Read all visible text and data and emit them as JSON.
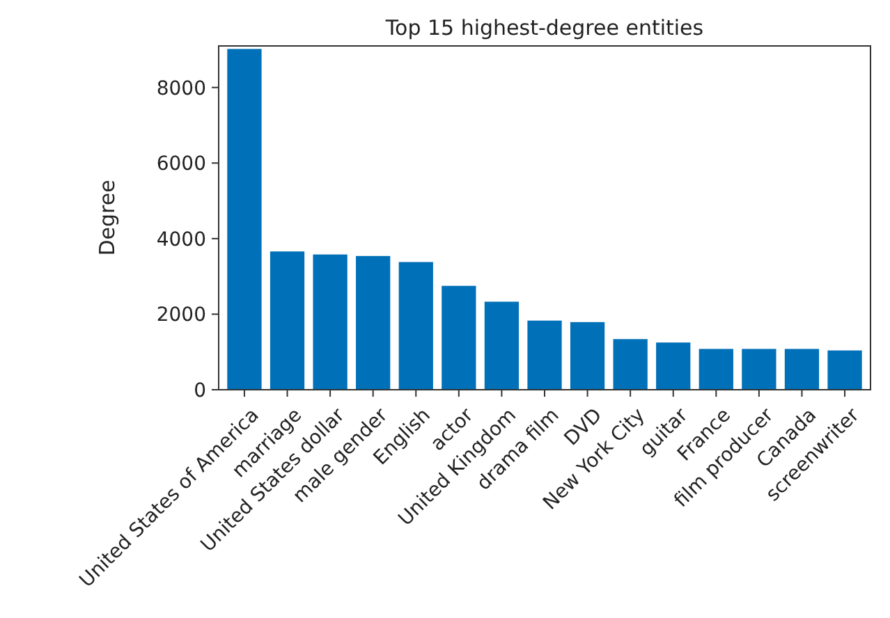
{
  "chart_data": {
    "type": "bar",
    "title": "Top 15 highest-degree entities",
    "ylabel": "Degree",
    "categories": [
      "United States of America",
      "marriage",
      "United States dollar",
      "male gender",
      "English",
      "actor",
      "United Kingdom",
      "drama film",
      "DVD",
      "New York City",
      "guitar",
      "France",
      "film producer",
      "Canada",
      "screenwriter"
    ],
    "values": [
      9020,
      3660,
      3580,
      3540,
      3380,
      2750,
      2330,
      1830,
      1790,
      1340,
      1250,
      1080,
      1080,
      1080,
      1040
    ],
    "color": "#0070b8",
    "ylim": [
      0,
      9100
    ],
    "yticks": [
      0,
      2000,
      4000,
      6000,
      8000
    ],
    "grid": false
  }
}
